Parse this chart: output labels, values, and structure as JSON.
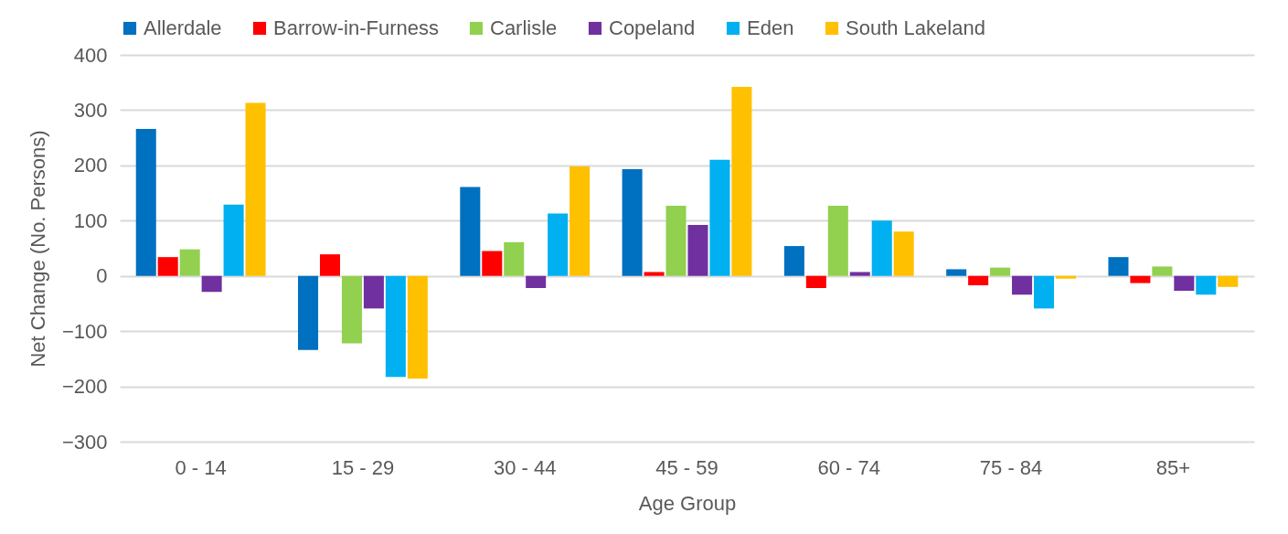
{
  "chart_data": {
    "type": "bar",
    "xlabel": "Age Group",
    "ylabel": "Net Change (No. Persons)",
    "categories": [
      "0 - 14",
      "15 - 29",
      "30 - 44",
      "45 - 59",
      "60 - 74",
      "75 - 84",
      "85+"
    ],
    "series": [
      {
        "name": "Allerdale",
        "color": "#0070c0",
        "values": [
          266,
          -134,
          161,
          193,
          54,
          12,
          34
        ]
      },
      {
        "name": "Barrow-in-Furness",
        "color": "#ff0000",
        "values": [
          34,
          39,
          45,
          7,
          -22,
          -17,
          -13
        ]
      },
      {
        "name": "Carlisle",
        "color": "#92d050",
        "values": [
          48,
          -122,
          61,
          127,
          127,
          15,
          17
        ]
      },
      {
        "name": "Copeland",
        "color": "#7030a0",
        "values": [
          -29,
          -59,
          -22,
          92,
          7,
          -34,
          -27
        ]
      },
      {
        "name": "Eden",
        "color": "#00b0f0",
        "values": [
          129,
          -183,
          113,
          210,
          100,
          -59,
          -34
        ]
      },
      {
        "name": "South Lakeland",
        "color": "#ffc000",
        "values": [
          313,
          -186,
          198,
          342,
          80,
          -5,
          -20
        ]
      }
    ],
    "ylim": [
      -300,
      400
    ],
    "yticks": [
      -300,
      -200,
      -100,
      0,
      100,
      200,
      300,
      400
    ],
    "grid": "y",
    "legend": "top"
  }
}
